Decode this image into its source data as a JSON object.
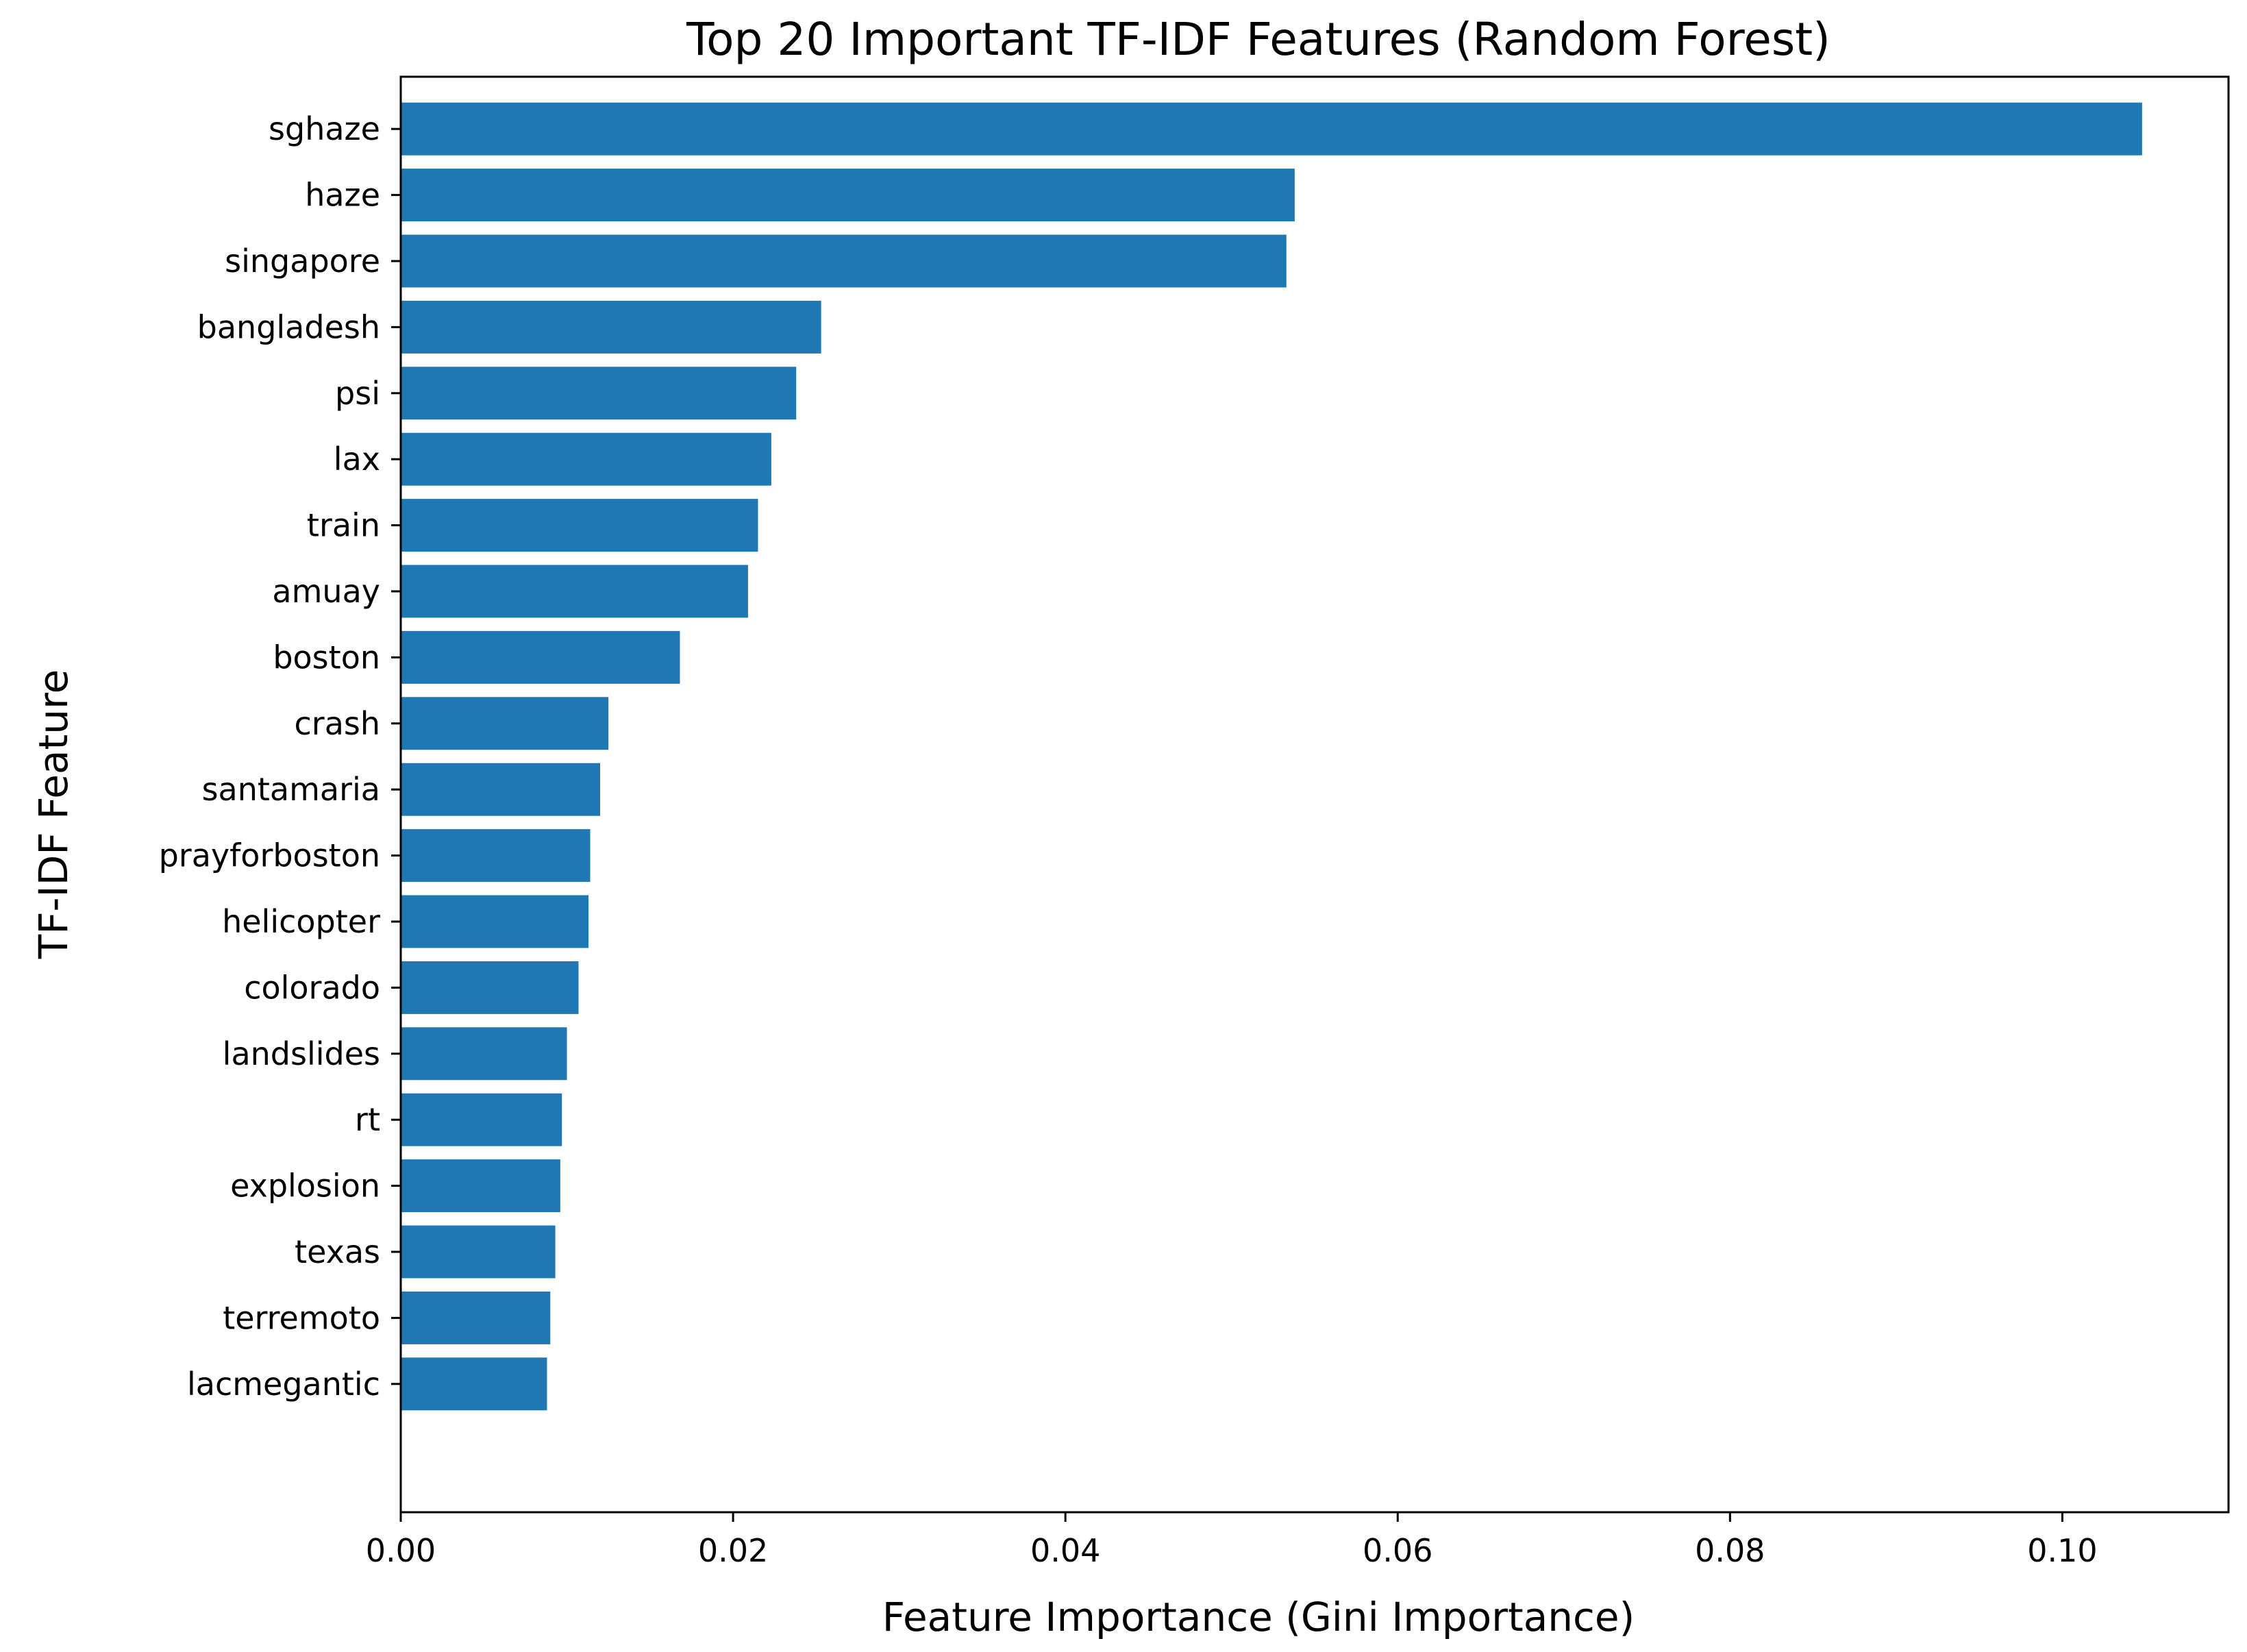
{
  "chart_data": {
    "type": "bar",
    "orientation": "horizontal",
    "title": "Top 20 Important TF-IDF Features (Random Forest)",
    "xlabel": "Feature Importance (Gini Importance)",
    "ylabel": "TF-IDF Feature",
    "categories": [
      "sghaze",
      "haze",
      "singapore",
      "bangladesh",
      "psi",
      "lax",
      "train",
      "amuay",
      "boston",
      "crash",
      "santamaria",
      "prayforboston",
      "helicopter",
      "colorado",
      "landslides",
      "rt",
      "explosion",
      "texas",
      "terremoto",
      "lacmegantic"
    ],
    "values": [
      0.1048,
      0.0538,
      0.0533,
      0.0253,
      0.0238,
      0.0223,
      0.0215,
      0.0209,
      0.0168,
      0.0125,
      0.012,
      0.0114,
      0.0113,
      0.0107,
      0.01,
      0.0097,
      0.0096,
      0.0093,
      0.009,
      0.0088
    ],
    "xlim": [
      0,
      0.11
    ],
    "xticks": [
      0.0,
      0.02,
      0.04,
      0.06,
      0.08,
      0.1
    ],
    "xtick_labels": [
      "0.00",
      "0.02",
      "0.04",
      "0.06",
      "0.08",
      "0.10"
    ],
    "bar_color": "#1f77b4",
    "grid": false
  }
}
